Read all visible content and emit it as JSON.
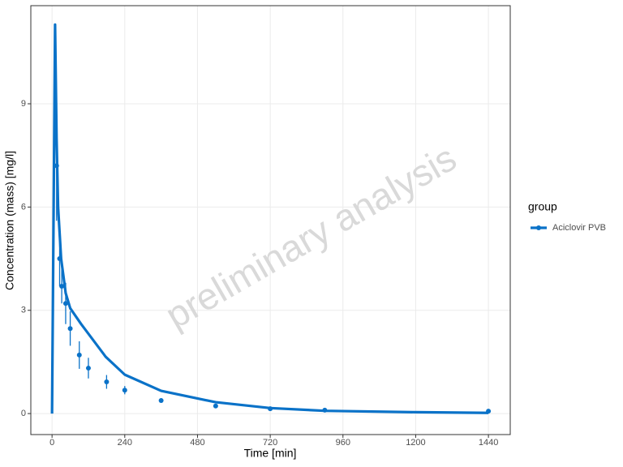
{
  "chart_data": {
    "type": "line",
    "xlabel": "Time [min]",
    "ylabel": "Concentration (mass) [mg/l]",
    "watermark": "preliminary analysis",
    "legend_title": "group",
    "legend_position": "right",
    "grid": true,
    "xlim": [
      -70,
      1512
    ],
    "ylim": [
      -0.61,
      11.85
    ],
    "xticks": [
      0,
      240,
      480,
      720,
      960,
      1200,
      1440
    ],
    "yticks": [
      0,
      3,
      6,
      9
    ],
    "series": [
      {
        "name": "Aciclovir PVB",
        "color": "#0a72c8",
        "x": [
          0,
          10,
          15,
          20,
          30,
          45,
          60,
          96,
          177,
          240,
          360,
          540,
          720,
          900,
          1200,
          1440
        ],
        "values": [
          0,
          11.3,
          8,
          6,
          4.5,
          3.5,
          3.06,
          2.6,
          1.65,
          1.13,
          0.66,
          0.33,
          0.16,
          0.08,
          0.04,
          0.02
        ]
      }
    ],
    "observed": {
      "color": "#0a72c8",
      "x": [
        15,
        25,
        32,
        45,
        60,
        90,
        120,
        180,
        240,
        360,
        540,
        720,
        900,
        1440
      ],
      "values": [
        7.2,
        4.5,
        3.7,
        3.2,
        2.47,
        1.7,
        1.32,
        0.92,
        0.68,
        0.38,
        0.22,
        0.14,
        0.1,
        0.07
      ],
      "error": [
        1.6,
        0.8,
        0.5,
        0.6,
        0.5,
        0.4,
        0.3,
        0.2,
        0.12,
        0.07,
        0.03,
        0.02,
        0.02,
        0.02
      ]
    }
  }
}
